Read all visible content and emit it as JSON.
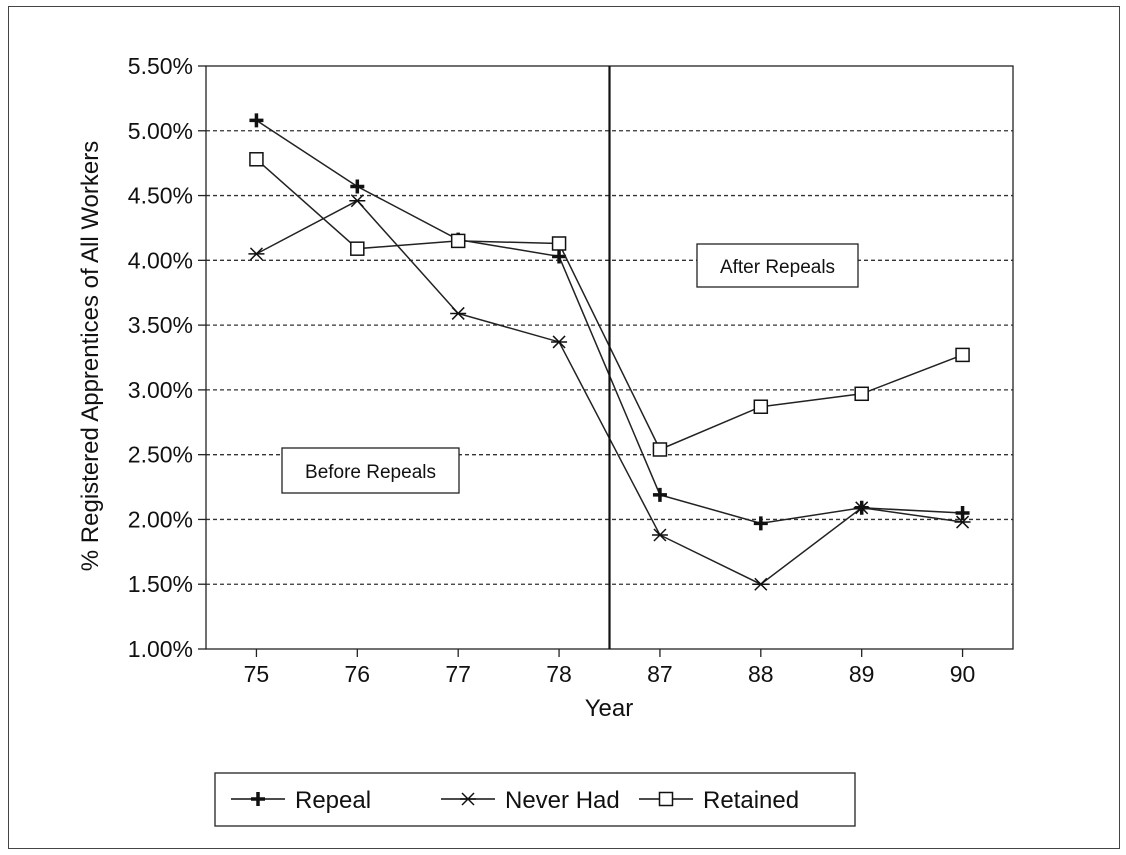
{
  "chart_data": {
    "type": "line",
    "ylabel": "% Registered Apprentices of All Workers",
    "xlabel": "Year",
    "categories": [
      "75",
      "76",
      "77",
      "78",
      "87",
      "88",
      "89",
      "90"
    ],
    "ylim": [
      1.0,
      5.5
    ],
    "yticks": [
      "1.00%",
      "1.50%",
      "2.00%",
      "2.50%",
      "3.00%",
      "3.50%",
      "4.00%",
      "4.50%",
      "5.00%",
      "5.50%"
    ],
    "grid": "horizontal-dashed",
    "series": [
      {
        "name": "Repeal",
        "marker": "plus",
        "values": [
          5.08,
          4.57,
          4.16,
          4.03,
          2.19,
          1.97,
          2.09,
          2.05
        ]
      },
      {
        "name": "Never Had",
        "marker": "asterisk",
        "values": [
          4.05,
          4.46,
          3.59,
          3.37,
          1.88,
          1.5,
          2.09,
          1.98
        ]
      },
      {
        "name": "Retained",
        "marker": "square",
        "values": [
          4.78,
          4.09,
          4.15,
          4.13,
          2.54,
          2.87,
          2.97,
          3.27
        ]
      }
    ],
    "divider_after_category": "78",
    "annotations": {
      "before": "Before Repeals",
      "after": "After Repeals"
    },
    "legend_position": "bottom"
  }
}
